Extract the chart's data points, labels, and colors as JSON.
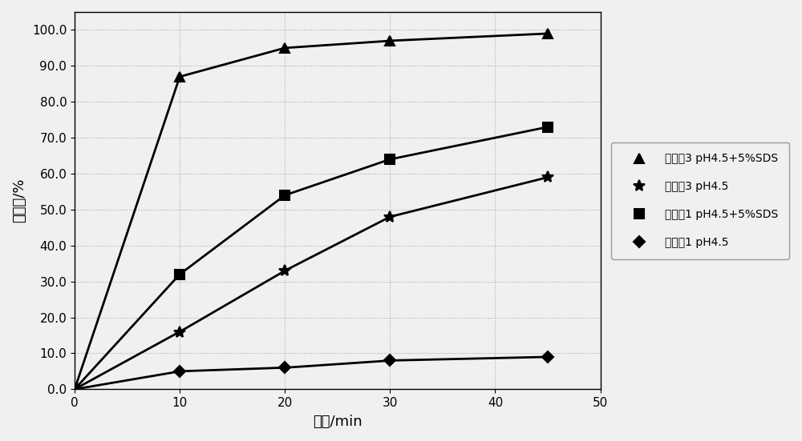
{
  "title": "",
  "xlabel": "时间/min",
  "ylabel": "溶出度/%",
  "xlim": [
    0,
    50
  ],
  "ylim": [
    0,
    105
  ],
  "yticks": [
    0.0,
    10.0,
    20.0,
    30.0,
    40.0,
    50.0,
    60.0,
    70.0,
    80.0,
    90.0,
    100.0
  ],
  "xticks": [
    0,
    10,
    20,
    30,
    40,
    50
  ],
  "series": [
    {
      "label": "实施例3 pH4.5+5%SDS",
      "x": [
        0,
        10,
        20,
        30,
        45
      ],
      "y": [
        0,
        87,
        95,
        97,
        99
      ],
      "marker": "^",
      "color": "#000000",
      "linewidth": 2.0,
      "markersize": 8
    },
    {
      "label": "实施例3 pH4.5",
      "x": [
        0,
        10,
        20,
        30,
        45
      ],
      "y": [
        0,
        16,
        33,
        48,
        59
      ],
      "marker": "x",
      "color": "#000000",
      "linewidth": 2.0,
      "markersize": 10
    },
    {
      "label": "对比例1 pH4.5+5%SDS",
      "x": [
        0,
        10,
        20,
        30,
        45
      ],
      "y": [
        0,
        32,
        54,
        64,
        73
      ],
      "marker": "s",
      "color": "#000000",
      "linewidth": 2.0,
      "markersize": 8
    },
    {
      "label": "对比例1 pH4.5",
      "x": [
        0,
        10,
        20,
        30,
        45
      ],
      "y": [
        0,
        5,
        6,
        8,
        9
      ],
      "marker": "D",
      "color": "#000000",
      "linewidth": 2.0,
      "markersize": 7
    }
  ],
  "background_color": "#f0f0f0",
  "plot_background": "#f0f0f0",
  "grid_color": "#aaaaaa"
}
